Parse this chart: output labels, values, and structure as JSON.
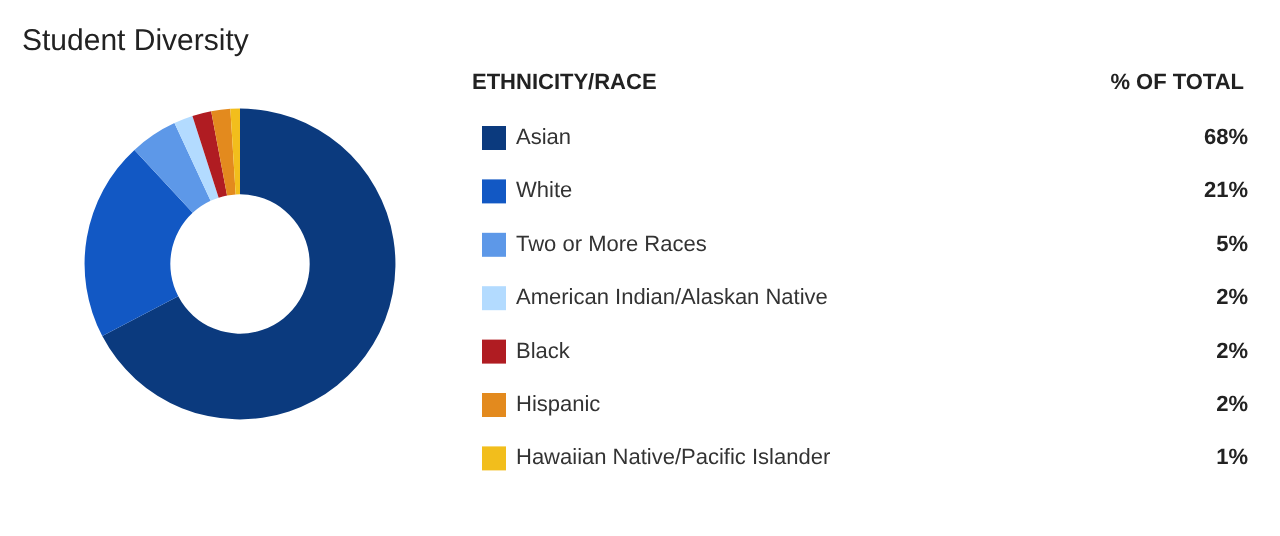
{
  "chart_data": {
    "type": "donut",
    "title": "Student Diversity",
    "legend_title": "ETHNICITY/RACE",
    "annotations": [
      "% OF TOTAL"
    ],
    "categories": [
      "Asian",
      "White",
      "Two or More Races",
      "American Indian/Alaskan Native",
      "Black",
      "Hispanic",
      "Hawaiian Native/Pacific Islander"
    ],
    "values": [
      68,
      21,
      5,
      2,
      2,
      2,
      1
    ],
    "value_labels": [
      "68%",
      "21%",
      "5%",
      "2%",
      "2%",
      "2%",
      "1%"
    ],
    "colors": [
      "#0b3a7e",
      "#1258c4",
      "#5d98e8",
      "#b3dbff",
      "#b01c22",
      "#e38a1e",
      "#f2be1c"
    ],
    "legend": "right"
  }
}
